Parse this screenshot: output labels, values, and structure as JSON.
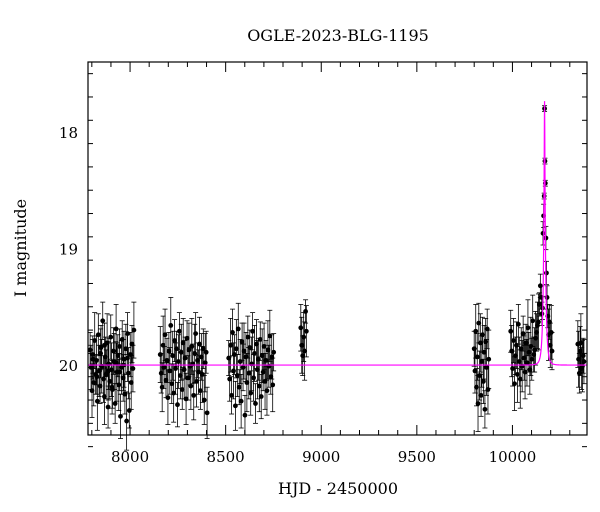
{
  "chart_data": {
    "type": "scatter",
    "title": "OGLE-2023-BLG-1195",
    "xlabel": "HJD - 2450000",
    "ylabel": "I magnitude",
    "xlim": [
      7780,
      10390
    ],
    "ylim": [
      20.6,
      17.4
    ],
    "y_inverted": true,
    "x_ticks": [
      8000,
      8500,
      9000,
      9500,
      10000
    ],
    "y_ticks": [
      18,
      19,
      20
    ],
    "grid": false,
    "colors": {
      "points": "#000000",
      "model": "#ff00ff"
    },
    "model": {
      "baseline": 20.0,
      "t0": 10168,
      "u0": 0.125,
      "tE": 12,
      "name": ""
    },
    "series": [
      {
        "values": [
          [
            7791,
            19.87
          ],
          [
            7796,
            20.02
          ],
          [
            7801,
            20.22
          ],
          [
            7805,
            19.91
          ],
          [
            7810,
            20.15
          ],
          [
            7815,
            19.79
          ],
          [
            7820,
            20.08
          ],
          [
            7824,
            19.96
          ],
          [
            7829,
            20.31
          ],
          [
            7834,
            19.74
          ],
          [
            7838,
            20.05
          ],
          [
            7843,
            20.18
          ],
          [
            7848,
            19.85
          ],
          [
            7852,
            20.01
          ],
          [
            7857,
            19.62
          ],
          [
            7861,
            20.12
          ],
          [
            7866,
            20.27
          ],
          [
            7871,
            19.93
          ],
          [
            7875,
            20.08
          ],
          [
            7880,
            19.81
          ],
          [
            7885,
            20.36
          ],
          [
            7889,
            19.99
          ],
          [
            7894,
            20.14
          ],
          [
            7899,
            19.76
          ],
          [
            7903,
            20.04
          ],
          [
            7908,
            20.21
          ],
          [
            7913,
            19.88
          ],
          [
            7917,
            19.97
          ],
          [
            7922,
            20.33
          ],
          [
            7927,
            19.69
          ],
          [
            7931,
            20.06
          ],
          [
            7936,
            19.92
          ],
          [
            7941,
            20.17
          ],
          [
            7945,
            19.84
          ],
          [
            7950,
            20.44
          ],
          [
            7955,
            20.02
          ],
          [
            7959,
            19.78
          ],
          [
            7964,
            20.11
          ],
          [
            7968,
            19.95
          ],
          [
            7973,
            20.25
          ],
          [
            7978,
            19.86
          ],
          [
            7982,
            20.48
          ],
          [
            7987,
            19.73
          ],
          [
            7992,
            20.07
          ],
          [
            7996,
            20.39
          ],
          [
            8001,
            19.91
          ],
          [
            8006,
            20.15
          ],
          [
            8010,
            19.82
          ],
          [
            8015,
            20.03
          ],
          [
            8020,
            19.7
          ],
          [
            7806,
            19.95
          ],
          [
            7846,
            19.9
          ],
          [
            7886,
            20.05
          ],
          [
            7926,
            19.98
          ],
          [
            7966,
            20.0
          ],
          [
            7826,
            20.1
          ],
          [
            7866,
            19.83
          ],
          [
            7906,
            20.19
          ],
          [
            7946,
            20.06
          ],
          [
            7986,
            19.94
          ],
          [
            8158,
            19.91
          ],
          [
            8163,
            20.07
          ],
          [
            8168,
            20.19
          ],
          [
            8173,
            19.83
          ],
          [
            8178,
            20.02
          ],
          [
            8183,
            19.74
          ],
          [
            8188,
            20.13
          ],
          [
            8193,
            19.96
          ],
          [
            8198,
            20.28
          ],
          [
            8203,
            19.88
          ],
          [
            8208,
            20.05
          ],
          [
            8213,
            19.66
          ],
          [
            8218,
            20.16
          ],
          [
            8223,
            19.92
          ],
          [
            8228,
            20.24
          ],
          [
            8233,
            19.79
          ],
          [
            8238,
            20.03
          ],
          [
            8243,
            19.86
          ],
          [
            8248,
            20.34
          ],
          [
            8253,
            19.97
          ],
          [
            8258,
            19.71
          ],
          [
            8263,
            20.09
          ],
          [
            8268,
            19.89
          ],
          [
            8273,
            20.21
          ],
          [
            8278,
            19.81
          ],
          [
            8283,
            20.04
          ],
          [
            8288,
            19.94
          ],
          [
            8293,
            20.29
          ],
          [
            8298,
            19.77
          ],
          [
            8303,
            20.11
          ],
          [
            8308,
            19.87
          ],
          [
            8313,
            20.01
          ],
          [
            8318,
            20.18
          ],
          [
            8323,
            19.84
          ],
          [
            8328,
            19.99
          ],
          [
            8333,
            20.26
          ],
          [
            8338,
            19.9
          ],
          [
            8343,
            19.73
          ],
          [
            8348,
            20.14
          ],
          [
            8353,
            19.96
          ],
          [
            8358,
            20.06
          ],
          [
            8363,
            19.82
          ],
          [
            8368,
            20.22
          ],
          [
            8373,
            19.93
          ],
          [
            8378,
            20.08
          ],
          [
            8383,
            19.86
          ],
          [
            8388,
            20.3
          ],
          [
            8393,
            19.98
          ],
          [
            8398,
            19.89
          ],
          [
            8403,
            20.41
          ],
          [
            8516,
            19.94
          ],
          [
            8521,
            20.12
          ],
          [
            8526,
            19.83
          ],
          [
            8531,
            20.26
          ],
          [
            8536,
            19.72
          ],
          [
            8541,
            20.05
          ],
          [
            8546,
            19.91
          ],
          [
            8551,
            20.35
          ],
          [
            8556,
            19.86
          ],
          [
            8561,
            20.09
          ],
          [
            8566,
            19.69
          ],
          [
            8571,
            20.19
          ],
          [
            8576,
            19.97
          ],
          [
            8581,
            20.31
          ],
          [
            8586,
            19.8
          ],
          [
            8591,
            20.02
          ],
          [
            8596,
            19.88
          ],
          [
            8601,
            20.43
          ],
          [
            8606,
            19.93
          ],
          [
            8611,
            20.15
          ],
          [
            8616,
            19.76
          ],
          [
            8621,
            20.07
          ],
          [
            8626,
            19.85
          ],
          [
            8631,
            20.24
          ],
          [
            8636,
            19.99
          ],
          [
            8641,
            19.71
          ],
          [
            8646,
            20.11
          ],
          [
            8651,
            19.9
          ],
          [
            8656,
            20.33
          ],
          [
            8661,
            19.82
          ],
          [
            8666,
            20.04
          ],
          [
            8671,
            19.95
          ],
          [
            8676,
            20.18
          ],
          [
            8681,
            19.78
          ],
          [
            8686,
            20.27
          ],
          [
            8691,
            19.92
          ],
          [
            8696,
            20.06
          ],
          [
            8701,
            19.84
          ],
          [
            8706,
            20.14
          ],
          [
            8711,
            19.96
          ],
          [
            8716,
            20.22
          ],
          [
            8721,
            19.87
          ],
          [
            8726,
            20.01
          ],
          [
            8731,
            19.75
          ],
          [
            8736,
            20.1
          ],
          [
            8741,
            19.93
          ],
          [
            8746,
            20.17
          ],
          [
            8751,
            19.89
          ],
          [
            8893,
            19.68
          ],
          [
            8898,
            19.83
          ],
          [
            8903,
            19.92
          ],
          [
            8908,
            19.76
          ],
          [
            8913,
            19.88
          ],
          [
            8918,
            19.54
          ],
          [
            8922,
            19.71
          ],
          [
            9800,
            19.86
          ],
          [
            9804,
            20.05
          ],
          [
            9808,
            19.71
          ],
          [
            9812,
            20.19
          ],
          [
            9816,
            19.93
          ],
          [
            9820,
            20.33
          ],
          [
            9824,
            19.64
          ],
          [
            9828,
            20.09
          ],
          [
            9832,
            19.81
          ],
          [
            9836,
            20.26
          ],
          [
            9840,
            19.97
          ],
          [
            9844,
            19.74
          ],
          [
            9848,
            20.14
          ],
          [
            9852,
            19.89
          ],
          [
            9856,
            20.38
          ],
          [
            9860,
            19.8
          ],
          [
            9864,
            20.02
          ],
          [
            9868,
            19.69
          ],
          [
            9872,
            20.21
          ],
          [
            9876,
            19.95
          ],
          [
            9991,
            19.71
          ],
          [
            9996,
            19.88
          ],
          [
            10001,
            20.03
          ],
          [
            10006,
            19.79
          ],
          [
            10011,
            20.16
          ],
          [
            10016,
            19.92
          ],
          [
            10021,
            19.83
          ],
          [
            10026,
            20.08
          ],
          [
            10031,
            19.65
          ],
          [
            10036,
            19.97
          ],
          [
            10041,
            20.12
          ],
          [
            10046,
            19.86
          ],
          [
            10051,
            20.01
          ],
          [
            10056,
            19.73
          ],
          [
            10061,
            19.94
          ],
          [
            10066,
            20.06
          ],
          [
            10071,
            19.81
          ],
          [
            10076,
            19.98
          ],
          [
            10081,
            19.68
          ],
          [
            10086,
            19.89
          ],
          [
            10091,
            20.04
          ],
          [
            10096,
            19.84
          ],
          [
            10101,
            19.95
          ],
          [
            10106,
            19.62
          ],
          [
            10111,
            19.91
          ],
          [
            10116,
            19.87
          ],
          [
            10121,
            19.77
          ],
          [
            10126,
            19.72
          ],
          [
            10131,
            19.66
          ],
          [
            10136,
            19.63
          ],
          [
            10141,
            19.48
          ],
          [
            10146,
            19.32
          ],
          [
            10151,
            19.42
          ],
          [
            10154,
            19.56
          ],
          [
            10157,
            19.51
          ],
          [
            10160,
            18.87
          ],
          [
            10163,
            18.72
          ],
          [
            10166,
            18.55
          ],
          [
            10168,
            17.8
          ],
          [
            10170,
            18.25
          ],
          [
            10172,
            18.44
          ],
          [
            10175,
            18.91
          ],
          [
            10178,
            19.21
          ],
          [
            10181,
            19.42
          ],
          [
            10185,
            19.58
          ],
          [
            10189,
            19.74
          ],
          [
            10194,
            19.63
          ],
          [
            10198,
            19.83
          ],
          [
            10203,
            19.72
          ],
          [
            10207,
            19.88
          ],
          [
            10342,
            19.82
          ],
          [
            10346,
            19.95
          ],
          [
            10350,
            20.07
          ],
          [
            10354,
            19.88
          ],
          [
            10358,
            19.81
          ],
          [
            10362,
            20.03
          ],
          [
            10366,
            20.01
          ],
          [
            10370,
            19.92
          ],
          [
            10374,
            19.97
          ]
        ]
      }
    ]
  }
}
